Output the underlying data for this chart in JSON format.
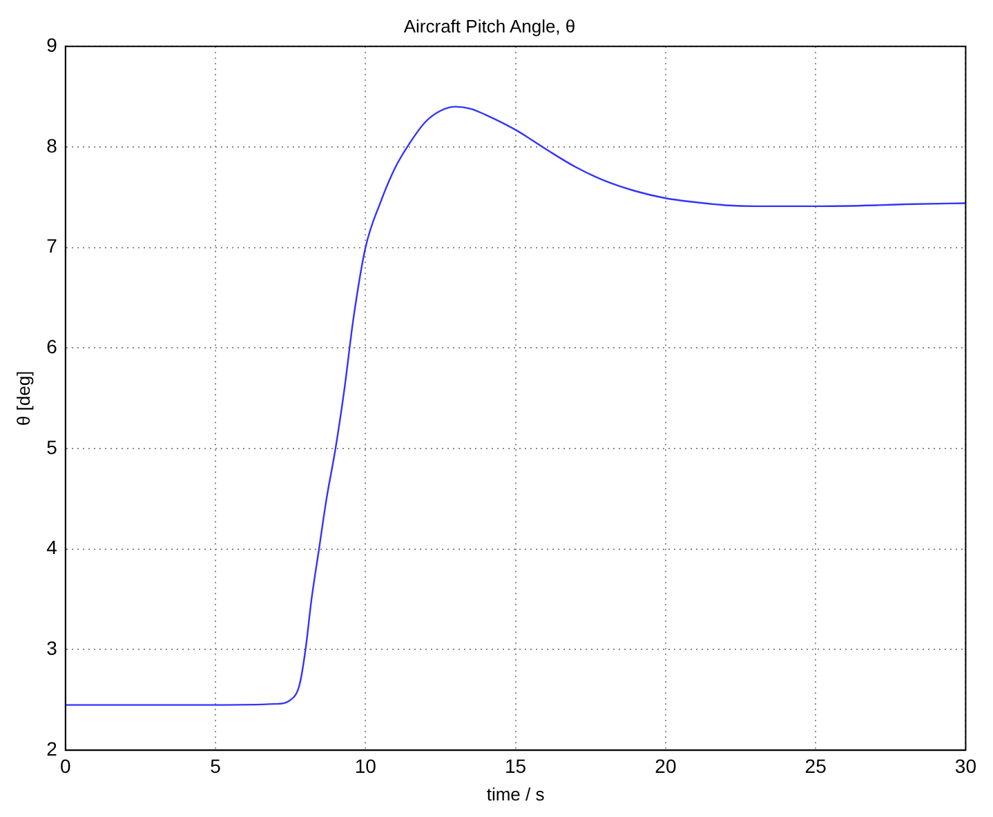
{
  "chart_data": {
    "type": "line",
    "title": "Aircraft Pitch Angle, θ",
    "xlabel": "time / s",
    "ylabel": "θ [deg]",
    "xlim": [
      0,
      30
    ],
    "xticks": [
      0,
      5,
      10,
      15,
      20,
      25,
      30
    ],
    "ylim": [
      2,
      9
    ],
    "yticks": [
      2,
      3,
      4,
      5,
      6,
      7,
      8,
      9
    ],
    "grid": true,
    "line_style": "solid",
    "marker": "none",
    "x": [
      0,
      5,
      7,
      7.5,
      7.8,
      8,
      8.2,
      8.45,
      8.7,
      9,
      9.3,
      9.6,
      10,
      10.5,
      11,
      11.5,
      12,
      12.5,
      13,
      13.5,
      14,
      15,
      16,
      17,
      18,
      19,
      20,
      21,
      22,
      23,
      25,
      27,
      28,
      30
    ],
    "series": [
      {
        "color": "#3333ff",
        "values": [
          2.45,
          2.45,
          2.46,
          2.5,
          2.65,
          3.0,
          3.5,
          4.0,
          4.5,
          5.0,
          5.6,
          6.3,
          7.0,
          7.45,
          7.8,
          8.05,
          8.25,
          8.36,
          8.4,
          8.38,
          8.32,
          8.17,
          7.98,
          7.8,
          7.66,
          7.56,
          7.49,
          7.45,
          7.42,
          7.41,
          7.41,
          7.42,
          7.43,
          7.44
        ]
      }
    ]
  }
}
